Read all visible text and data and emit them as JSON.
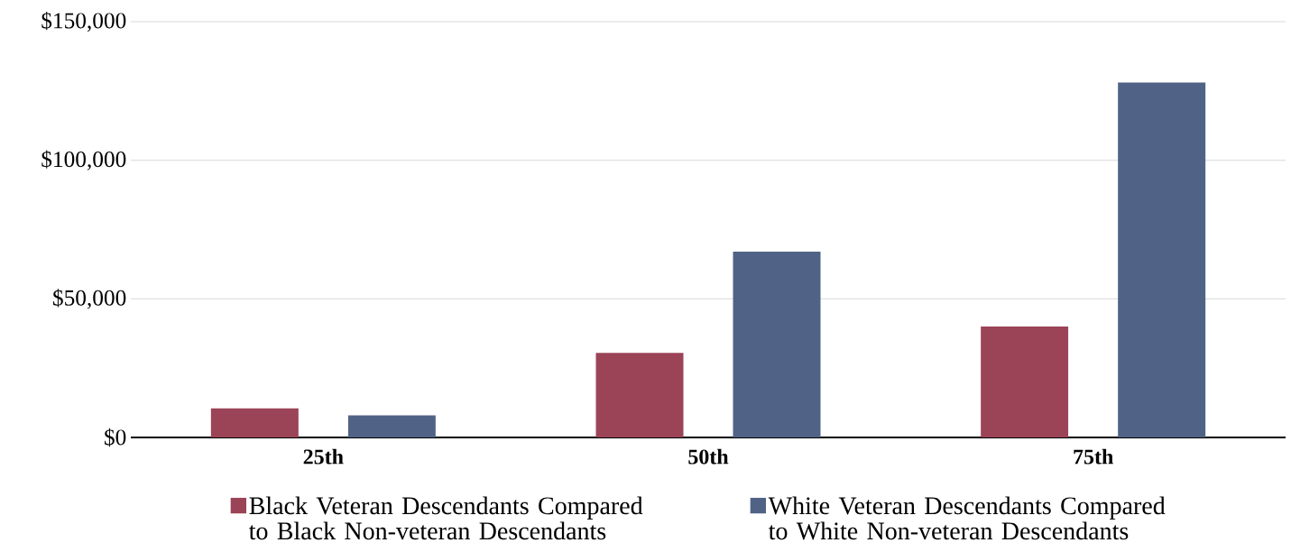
{
  "chart_data": {
    "type": "bar",
    "categories": [
      "25th",
      "50th",
      "75th"
    ],
    "series": [
      {
        "name": "Black Veteran Descendants Compared to  Black Non-veteran Descendants",
        "color": "#9b4457",
        "values": [
          10500,
          30500,
          40000
        ]
      },
      {
        "name": "White Veteran Descendants Compared to  White Non-veteran Descendants",
        "color": "#506386",
        "values": [
          8000,
          67000,
          128000
        ]
      }
    ],
    "ylim": [
      0,
      150000
    ],
    "yticks": [
      {
        "value": 0,
        "label": "$0"
      },
      {
        "value": 50000,
        "label": "$50,000"
      },
      {
        "value": 100000,
        "label": "$100,000"
      },
      {
        "value": 150000,
        "label": "$150,000"
      }
    ],
    "grid": "y",
    "legend": "bottom"
  }
}
